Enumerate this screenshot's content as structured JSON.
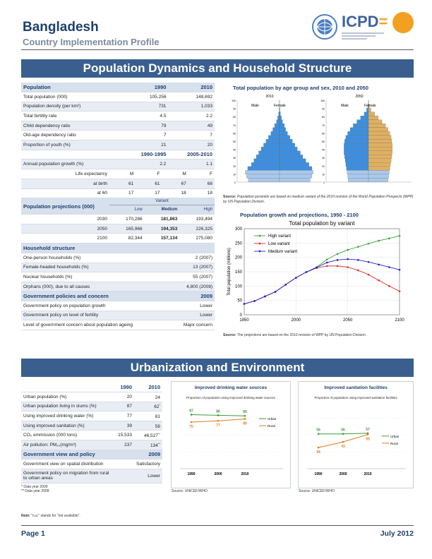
{
  "header": {
    "title": "Bangladesh",
    "subtitle": "Country Implementation Profile",
    "logo_text": "ICPD",
    "logo_eq": "="
  },
  "section1": {
    "title": "Population Dynamics and Household Structure",
    "population": {
      "head": [
        "Population",
        "1990",
        "2010"
      ],
      "rows": [
        [
          "Total population (000)",
          "105,256",
          "148,692"
        ],
        [
          "Population density (per km²)",
          "731",
          "1,033"
        ],
        [
          "Total fertility rate",
          "4.5",
          "2.2"
        ],
        [
          "Child dependency ratio",
          "79",
          "49"
        ],
        [
          "Old-age dependency ratio",
          "7",
          "7"
        ],
        [
          "Proportion of youth (%)",
          "21",
          "20"
        ]
      ]
    },
    "growth": {
      "head": [
        "",
        "1990-1995",
        "2005-2010"
      ],
      "rows": [
        [
          "Annual population growth (%)",
          "2.2",
          "1.1"
        ]
      ]
    },
    "life": {
      "label": "Life expectancy",
      "sexes": [
        "M",
        "F",
        "M",
        "F"
      ],
      "rows": [
        [
          "at birth",
          "61",
          "61",
          "67",
          "68"
        ],
        [
          "at 60",
          "17",
          "17",
          "18",
          "18"
        ]
      ]
    },
    "projections": {
      "head": "Population projections (000)",
      "variant_label": "Variant",
      "cols": [
        "Low",
        "Medium",
        "High"
      ],
      "rows": [
        [
          "2030",
          "170,286",
          "181,863",
          "193,494"
        ],
        [
          "2050",
          "165,966",
          "194,353",
          "226,325"
        ],
        [
          "2100",
          "82,344",
          "157,134",
          "275,080"
        ]
      ]
    },
    "household": {
      "head": "Household structure",
      "rows": [
        [
          "One-person households (%)",
          "2 (2007)"
        ],
        [
          "Female-headed households (%)",
          "13 (2007)"
        ],
        [
          "Nuclear households (%)",
          "55 (2007)"
        ],
        [
          "Orphans (000), due to all causes",
          "4,800 (2009)"
        ]
      ]
    },
    "policy": {
      "head": [
        "Government policies and concern",
        "2009"
      ],
      "rows": [
        [
          "Government policy on population growth",
          "Lower"
        ],
        [
          "Government policy on level of fertility",
          "Lower"
        ],
        [
          "Level of government concern about population ageing",
          "Major concern"
        ]
      ]
    },
    "pyramid": {
      "title": "Total population by age group and sex, 2010 and 2050",
      "years": [
        "2010",
        "2050"
      ],
      "male": "Male",
      "female": "Female",
      "source_label": "Source:",
      "source": "Population pyramids are based on medium variant of the 2010 revision of the World Population Prospects (WPP) by UN Population Division."
    },
    "growth_chart": {
      "title": "Population growth and projections, 1950 - 2100",
      "source_label": "Source:",
      "source": "The projections are based on the 2010 revision of WPP by UN Population Division."
    }
  },
  "section2": {
    "title": "Urbanization and Environment",
    "table": {
      "head": [
        "",
        "1990",
        "2010"
      ],
      "rows": [
        [
          "Urban population (%)",
          "20",
          "24",
          ""
        ],
        [
          "Urban population living in slums (%)",
          "87",
          "62",
          "*"
        ],
        [
          "Using improved drinking water (%)",
          "77",
          "81",
          ""
        ],
        [
          "Using improved sanitation (%)",
          "39",
          "56",
          ""
        ],
        [
          "CO₂ emmission (000 tons)",
          "15,533",
          "46,527",
          "**"
        ],
        [
          "Air pollution: PM₁₀(mg/m³)",
          "237",
          "134",
          "**"
        ]
      ]
    },
    "policy": {
      "head": [
        "Government view and policy",
        "2009"
      ],
      "rows": [
        [
          "Government view on spatial distribution",
          "Satisfactory"
        ],
        [
          "Government policy on migration from rural to urban areas",
          "Lower"
        ]
      ]
    },
    "footnotes": [
      "* Data year 2009",
      "** Data year 2008"
    ],
    "note_label": "Note:",
    "note": "\"n.a.\" stands for \"not available\".",
    "water": {
      "title": "Improved drinking water sources",
      "subtitle": "Proportion of population using improved drinking water sources",
      "source": "Source: UNICEF/WHO"
    },
    "sanitation": {
      "title": "Improved sanitation facilities",
      "subtitle": "Proportion of population using improved sanitation facilities",
      "source": "Source: UNICEF/WHO"
    }
  },
  "footer": {
    "page": "Page 1",
    "date": "July 2012"
  },
  "chart_data": [
    {
      "type": "area",
      "title": "Total population by age group and sex, 2010 and 2050",
      "panels": [
        {
          "year": "2010",
          "age_groups": [
            "0-4",
            "5-9",
            "10-14",
            "15-19",
            "20-24",
            "25-29",
            "30-34",
            "35-39",
            "40-44",
            "45-49",
            "50-54",
            "55-59",
            "60-64",
            "65-69",
            "70-74",
            "75-79",
            "80-84",
            "85-89",
            "90-94",
            "95-99",
            "100+"
          ],
          "male": [
            5.1,
            5.4,
            5.6,
            5.2,
            4.6,
            4.2,
            3.8,
            3.4,
            3.0,
            2.6,
            2.2,
            1.8,
            1.4,
            1.1,
            0.8,
            0.5,
            0.3,
            0.15,
            0.05,
            0.02,
            0.01
          ],
          "female": [
            5.0,
            5.3,
            5.5,
            5.3,
            4.8,
            4.3,
            3.8,
            3.4,
            2.9,
            2.5,
            2.1,
            1.7,
            1.3,
            1.0,
            0.8,
            0.5,
            0.3,
            0.15,
            0.06,
            0.02,
            0.01
          ]
        },
        {
          "year": "2050",
          "age_groups": [
            "0-4",
            "5-9",
            "10-14",
            "15-19",
            "20-24",
            "25-29",
            "30-34",
            "35-39",
            "40-44",
            "45-49",
            "50-54",
            "55-59",
            "60-64",
            "65-69",
            "70-74",
            "75-79",
            "80-84",
            "85-89",
            "90-94",
            "95-99",
            "100+"
          ],
          "male": [
            3.3,
            3.4,
            3.5,
            3.6,
            3.7,
            3.8,
            3.9,
            4.0,
            4.0,
            4.0,
            3.9,
            3.7,
            3.4,
            3.0,
            2.5,
            1.9,
            1.3,
            0.7,
            0.3,
            0.1,
            0.02
          ],
          "female": [
            3.2,
            3.3,
            3.4,
            3.5,
            3.6,
            3.7,
            3.8,
            3.9,
            3.9,
            3.9,
            3.8,
            3.7,
            3.5,
            3.2,
            2.8,
            2.2,
            1.6,
            1.0,
            0.4,
            0.15,
            0.03
          ]
        }
      ],
      "ylim": [
        0,
        100
      ]
    },
    {
      "type": "line",
      "title": "Total population by variant",
      "ylabel": "Total population (millions)",
      "x": [
        1950,
        1960,
        1970,
        1980,
        1990,
        2000,
        2010,
        2020,
        2030,
        2040,
        2050,
        2060,
        2070,
        2080,
        2090,
        2100
      ],
      "series": [
        {
          "name": "High variant",
          "color": "#3aa33a",
          "values": [
            38,
            48,
            64,
            80,
            105,
            129,
            149,
            166,
            193,
            212,
            226,
            237,
            248,
            258,
            266,
            275
          ]
        },
        {
          "name": "Low variant",
          "color": "#e03030",
          "values": [
            38,
            48,
            64,
            80,
            105,
            129,
            149,
            163,
            170,
            170,
            166,
            155,
            140,
            120,
            100,
            82
          ]
        },
        {
          "name": "Medium variant",
          "color": "#2020d0",
          "values": [
            38,
            48,
            64,
            80,
            105,
            129,
            149,
            165,
            182,
            191,
            194,
            191,
            184,
            175,
            166,
            157
          ]
        }
      ],
      "xlim": [
        1950,
        2100
      ],
      "ylim": [
        0,
        300
      ]
    },
    {
      "type": "line",
      "title": "Improved drinking water sources",
      "x": [
        1990,
        2000,
        2010
      ],
      "series": [
        {
          "name": "Urban",
          "color": "#3c9b3c",
          "values": [
            87,
            86,
            85
          ]
        },
        {
          "name": "Rural",
          "color": "#e07b1a",
          "values": [
            75,
            77,
            80
          ]
        }
      ],
      "ylim": [
        0,
        100
      ]
    },
    {
      "type": "line",
      "title": "Improved sanitation facilities",
      "x": [
        1990,
        2000,
        2010
      ],
      "series": [
        {
          "name": "Urban",
          "color": "#3c9b3c",
          "values": [
            56,
            56,
            57
          ]
        },
        {
          "name": "Rural",
          "color": "#e07b1a",
          "values": [
            34,
            43,
            55
          ]
        }
      ],
      "ylim": [
        0,
        100
      ]
    }
  ]
}
